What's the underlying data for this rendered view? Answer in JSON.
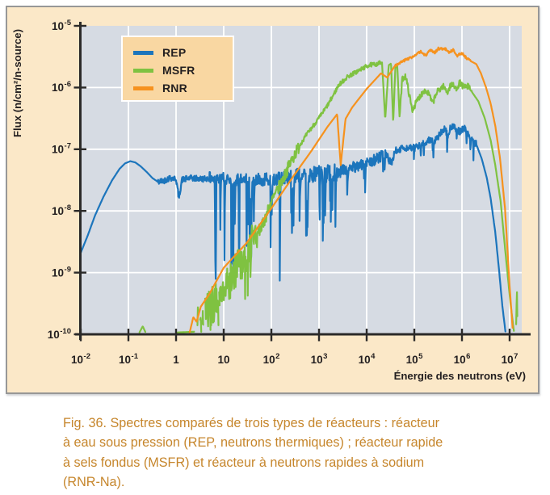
{
  "figure": {
    "caption": {
      "lines": [
        "Fig. 36. Spectres comparés de trois types de réacteurs : réacteur",
        "à eau sous pression (REP, neutrons thermiques) ; réacteur rapide",
        "à sels fondus (MSFR) et réacteur à neutrons rapides à sodium",
        "(RNR-Na)."
      ]
    }
  },
  "style_colors": {
    "frame_bg": "#fbe8c8",
    "plot_bg": "#d6dbe3",
    "legend_bg": "#f9d7a2",
    "grid": "#ffffff",
    "axis": "#2b2a29",
    "tick_text": "#231f20",
    "caption_text": "#c6862c",
    "frame_border": "#979797"
  },
  "chart_data": {
    "type": "line",
    "title": "",
    "xlabel": "Énergie des neutrons (eV)",
    "ylabel": "Flux (n/cm²/n-source)",
    "x_scale": "log",
    "y_scale": "log",
    "xlim": [
      0.01,
      20000000.0
    ],
    "ylim": [
      1e-10,
      1e-05
    ],
    "grid": true,
    "legend_position": "top-left",
    "x_ticks": [
      {
        "v": 0.01,
        "b": "10",
        "e": "-2"
      },
      {
        "v": 0.1,
        "b": "10",
        "e": "-1"
      },
      {
        "v": 1,
        "b": "1",
        "e": ""
      },
      {
        "v": 10,
        "b": "10",
        "e": ""
      },
      {
        "v": 100.0,
        "b": "10",
        "e": "2"
      },
      {
        "v": 1000.0,
        "b": "10",
        "e": "3"
      },
      {
        "v": 10000.0,
        "b": "10",
        "e": "4"
      },
      {
        "v": 100000.0,
        "b": "10",
        "e": "5"
      },
      {
        "v": 1000000.0,
        "b": "10",
        "e": "6"
      },
      {
        "v": 10000000.0,
        "b": "10",
        "e": "7"
      }
    ],
    "y_ticks": [
      {
        "v": 1e-05,
        "b": "10",
        "e": "-5"
      },
      {
        "v": 1e-06,
        "b": "10",
        "e": "-6"
      },
      {
        "v": 1e-07,
        "b": "10",
        "e": "-7"
      },
      {
        "v": 1e-08,
        "b": "10",
        "e": "-8"
      },
      {
        "v": 1e-09,
        "b": "10",
        "e": "-9"
      },
      {
        "v": 1e-10,
        "b": "10",
        "e": "-10"
      }
    ],
    "series": [
      {
        "name": "REP",
        "color": "#1c75bc",
        "seed": 42,
        "points": [
          [
            0.01,
            2.1e-09
          ],
          [
            0.014,
            4e-09
          ],
          [
            0.02,
            8.5e-09
          ],
          [
            0.03,
            1.7e-08
          ],
          [
            0.045,
            3.1e-08
          ],
          [
            0.065,
            4.8e-08
          ],
          [
            0.085,
            5.9e-08
          ],
          [
            0.11,
            6.4e-08
          ],
          [
            0.14,
            6.1e-08
          ],
          [
            0.18,
            5.3e-08
          ],
          [
            0.24,
            4.3e-08
          ],
          [
            0.32,
            3.4e-08
          ],
          [
            0.42,
            2.95e-08
          ],
          [
            0.55,
            3.1e-08
          ],
          [
            0.75,
            3.45e-08
          ],
          [
            1.0,
            3.3e-08
          ],
          [
            1.15,
            1.6e-08
          ],
          [
            1.32,
            3.2e-08
          ],
          [
            2.0,
            3.4e-08
          ],
          [
            3.5,
            3.3e-08
          ],
          [
            5.0,
            3.4e-08
          ],
          [
            6.5,
            3.3e-08
          ],
          [
            6.75,
            5e-10
          ],
          [
            7.05,
            3.2e-08
          ],
          [
            10,
            3.4e-08
          ],
          [
            15,
            3.3e-08
          ],
          [
            20.4,
            3.2e-08
          ],
          [
            21.0,
            7e-10
          ],
          [
            21.7,
            3.1e-08
          ],
          [
            30,
            3.3e-08
          ],
          [
            36.2,
            3.2e-08
          ],
          [
            36.7,
            2.5e-09
          ],
          [
            37.3,
            3.1e-08
          ],
          [
            50,
            3.3e-08
          ],
          [
            65.4,
            3.2e-08
          ],
          [
            66,
            2e-09
          ],
          [
            66.7,
            3.1e-08
          ],
          [
            80,
            3.3e-08
          ],
          [
            101,
            3.3e-08
          ],
          [
            102.5,
            4.5e-09
          ],
          [
            104,
            3.2e-08
          ],
          [
            150,
            3.4e-08
          ],
          [
            300,
            3.6e-08
          ],
          [
            600,
            3.8e-08
          ],
          [
            1000,
            4e-08
          ],
          [
            2000,
            4.3e-08
          ],
          [
            4000,
            4.8e-08
          ],
          [
            8000,
            5.6e-08
          ],
          [
            15000.0,
            6.8e-08
          ],
          [
            25000.0,
            8.2e-08
          ],
          [
            33000.0,
            6e-08
          ],
          [
            40000.0,
            9.5e-08
          ],
          [
            60000.0,
            1.05e-07
          ],
          [
            100000.0,
            1.05e-07
          ],
          [
            150000.0,
            1.2e-07
          ],
          [
            200000.0,
            1.4e-07
          ],
          [
            260000.0,
            1.3e-07
          ],
          [
            330000.0,
            1.65e-07
          ],
          [
            430000.0,
            2.2e-07
          ],
          [
            500000.0,
            1.7e-07
          ],
          [
            570000.0,
            2.2e-07
          ],
          [
            660000.0,
            2.45e-07
          ],
          [
            750000.0,
            2.1e-07
          ],
          [
            900000.0,
            1.95e-07
          ],
          [
            1100000.0,
            2.2e-07
          ],
          [
            1300000.0,
            1.9e-07
          ],
          [
            1600000.0,
            1.5e-07
          ],
          [
            2000000.0,
            1.2e-07
          ],
          [
            2600000.0,
            7e-08
          ],
          [
            3300000.0,
            3.5e-08
          ],
          [
            4000000.0,
            1.6e-08
          ],
          [
            5000000.0,
            4.5e-09
          ],
          [
            6000000.0,
            1.1e-09
          ],
          [
            7000000.0,
            3e-10
          ],
          [
            8300000.0,
            1e-10
          ]
        ],
        "noise": [
          {
            "f": 0.4,
            "t": 5,
            "a": 0.05
          },
          {
            "f": 5,
            "t": 200,
            "a": 0.1,
            "sp": 0.12,
            "sa": 1.6
          },
          {
            "f": 200,
            "t": 3000,
            "a": 0.13,
            "sp": 0.17,
            "sa": 1.1
          },
          {
            "f": 3000,
            "t": 30000.0,
            "a": 0.09,
            "sp": 0.1,
            "sa": 0.45
          },
          {
            "f": 30000.0,
            "t": 2000000.0,
            "a": 0.055,
            "sp": 0.05,
            "sa": 0.3
          }
        ]
      },
      {
        "name": "MSFR",
        "color": "#7fc241",
        "seed": 7,
        "points": [
          [
            0.165,
            1.02e-10
          ],
          [
            0.2,
            1.35e-10
          ],
          [
            0.235,
            1.02e-10
          ],
          [
            2.4,
            1.1e-10
          ],
          [
            4,
            2e-10
          ],
          [
            8,
            4e-10
          ],
          [
            15,
            8e-10
          ],
          [
            25,
            1.8e-09
          ],
          [
            40,
            3.5e-09
          ],
          [
            63,
            5.5e-09
          ],
          [
            100,
            1.4e-08
          ],
          [
            160,
            2.8e-08
          ],
          [
            250,
            6e-08
          ],
          [
            400,
            1.2e-07
          ],
          [
            630,
            2e-07
          ],
          [
            1000,
            3.2e-07
          ],
          [
            1600,
            5.5e-07
          ],
          [
            2600,
            1.1e-06
          ],
          [
            4000,
            1.5e-06
          ],
          [
            7000,
            1.9e-06
          ],
          [
            11000.0,
            2.3e-06
          ],
          [
            16000.0,
            2.4e-06
          ],
          [
            21000.0,
            2.55e-06
          ],
          [
            24500.0,
            3e-07
          ],
          [
            29000.0,
            2.3e-06
          ],
          [
            32500.0,
            2.45e-06
          ],
          [
            36000.0,
            2.6e-07
          ],
          [
            40000.0,
            2.1e-06
          ],
          [
            44000.0,
            2.25e-06
          ],
          [
            49000.0,
            3.3e-07
          ],
          [
            56000.0,
            1.4e-06
          ],
          [
            66000.0,
            1.55e-06
          ],
          [
            90000.0,
            4.3e-07
          ],
          [
            120000.0,
            6.5e-07
          ],
          [
            160000.0,
            9e-07
          ],
          [
            200000.0,
            8e-07
          ],
          [
            240000.0,
            5.5e-07
          ],
          [
            300000.0,
            8.5e-07
          ],
          [
            400000.0,
            1.05e-06
          ],
          [
            500000.0,
            8.5e-07
          ],
          [
            600000.0,
            1.15e-06
          ],
          [
            750000.0,
            9.5e-07
          ],
          [
            900000.0,
            1.2e-06
          ],
          [
            1100000.0,
            1e-06
          ],
          [
            1350000.0,
            1.05e-06
          ],
          [
            1700000.0,
            8e-07
          ],
          [
            2200000.0,
            6e-07
          ],
          [
            3000000.0,
            3.2e-07
          ],
          [
            4000000.0,
            1.4e-07
          ],
          [
            5000000.0,
            5.5e-08
          ],
          [
            6500000.0,
            1.4e-08
          ],
          [
            8000000.0,
            2.5e-09
          ],
          [
            10500000.0,
            3e-10
          ],
          [
            12500000.0,
            1.02e-10
          ],
          [
            13600000.0,
            1.02e-10
          ],
          [
            14200000.0,
            5.5e-10
          ],
          [
            14700000.0,
            1.02e-10
          ]
        ],
        "noise": [
          {
            "f": 2.4,
            "t": 50,
            "a": 0.32,
            "sp": 0.15,
            "sa": 0.5
          },
          {
            "f": 50,
            "t": 400,
            "a": 0.1
          },
          {
            "f": 400,
            "t": 20000.0,
            "a": 0.035
          },
          {
            "f": 50000.0,
            "t": 1600000.0,
            "a": 0.05
          }
        ]
      },
      {
        "name": "RNR",
        "color": "#f6921e",
        "seed": 3,
        "points": [
          [
            1.9,
            1.02e-10
          ],
          [
            2.3,
            1.9e-10
          ],
          [
            2.7,
            1.6e-10
          ],
          [
            3.3,
            2.8e-10
          ],
          [
            5,
            4.5e-10
          ],
          [
            10,
            1.2e-09
          ],
          [
            30,
            3e-09
          ],
          [
            100,
            1.1e-08
          ],
          [
            300,
            3.8e-08
          ],
          [
            700,
            9.5e-08
          ],
          [
            1500,
            2.3e-07
          ],
          [
            2400,
            3.7e-07
          ],
          [
            2850,
            5.5e-08
          ],
          [
            3600,
            3.1e-07
          ],
          [
            5000,
            4.8e-07
          ],
          [
            10000.0,
            9.5e-07
          ],
          [
            20000.0,
            1.7e-06
          ],
          [
            27000.0,
            1.45e-06
          ],
          [
            40000.0,
            2.3e-06
          ],
          [
            70000.0,
            2.9e-06
          ],
          [
            100000.0,
            3.2e-06
          ],
          [
            135000.0,
            3.85e-06
          ],
          [
            170000.0,
            3.3e-06
          ],
          [
            220000.0,
            4e-06
          ],
          [
            270000.0,
            3.7e-06
          ],
          [
            320000.0,
            4.3e-06
          ],
          [
            450000.0,
            4.2e-06
          ],
          [
            550000.0,
            3.7e-06
          ],
          [
            650000.0,
            4.1e-06
          ],
          [
            800000.0,
            3.3e-06
          ],
          [
            1000000.0,
            3.6e-06
          ],
          [
            1200000.0,
            3.1e-06
          ],
          [
            1500000.0,
            2.7e-06
          ],
          [
            2000000.0,
            2.4e-06
          ],
          [
            2500000.0,
            1.7e-06
          ],
          [
            3200000.0,
            1e-06
          ],
          [
            4000000.0,
            5.5e-07
          ],
          [
            5000000.0,
            2.4e-07
          ],
          [
            6300000.0,
            7e-08
          ],
          [
            8000000.0,
            1.1e-08
          ],
          [
            10000000.0,
            6e-10
          ],
          [
            11800000.0,
            1.02e-10
          ]
        ],
        "noise": [
          {
            "f": 40000.0,
            "t": 1500000.0,
            "a": 0.02
          }
        ]
      }
    ]
  }
}
